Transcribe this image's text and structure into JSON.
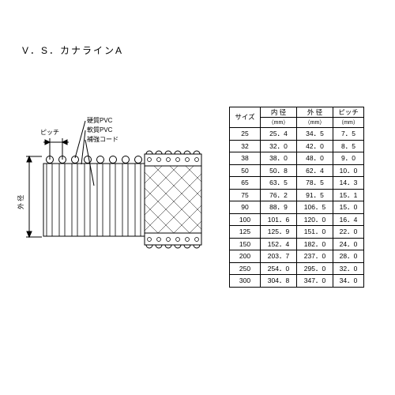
{
  "title": "V．S．カナラインA",
  "diagram": {
    "labels": {
      "pitch": "ピッチ",
      "hard_pvc": "硬質PVC",
      "soft_pvc": "軟質PVC",
      "cord": "補強コード",
      "outer_dia": "外 径"
    },
    "colors": {
      "stroke": "#000000",
      "fill": "#ffffff",
      "text": "#000000"
    },
    "font_size": 8
  },
  "table": {
    "headers": {
      "size": "サイズ",
      "inner_dia": "内 径",
      "outer_dia": "外 径",
      "pitch": "ピッチ",
      "unit": "（mm）"
    },
    "rows": [
      {
        "size": "25",
        "id": "25．4",
        "od": "34．5",
        "p": "7．5"
      },
      {
        "size": "32",
        "id": "32．0",
        "od": "42．0",
        "p": "8．5"
      },
      {
        "size": "38",
        "id": "38．0",
        "od": "48．0",
        "p": "9．0"
      },
      {
        "size": "50",
        "id": "50．8",
        "od": "62．4",
        "p": "10．0"
      },
      {
        "size": "65",
        "id": "63．5",
        "od": "78．5",
        "p": "14．3"
      },
      {
        "size": "75",
        "id": "76．2",
        "od": "91．5",
        "p": "15．1"
      },
      {
        "size": "90",
        "id": "88．9",
        "od": "106．5",
        "p": "15．0"
      },
      {
        "size": "100",
        "id": "101．6",
        "od": "120．0",
        "p": "16．4"
      },
      {
        "size": "125",
        "id": "125．9",
        "od": "151．0",
        "p": "22．0"
      },
      {
        "size": "150",
        "id": "152．4",
        "od": "182．0",
        "p": "24．0"
      },
      {
        "size": "200",
        "id": "203．7",
        "od": "237．0",
        "p": "28．0"
      },
      {
        "size": "250",
        "id": "254．0",
        "od": "295．0",
        "p": "32．0"
      },
      {
        "size": "300",
        "id": "304．8",
        "od": "347．0",
        "p": "34．0"
      }
    ],
    "colors": {
      "border": "#000000",
      "text": "#000000",
      "bg": "#ffffff"
    },
    "font_size": 8.5
  }
}
